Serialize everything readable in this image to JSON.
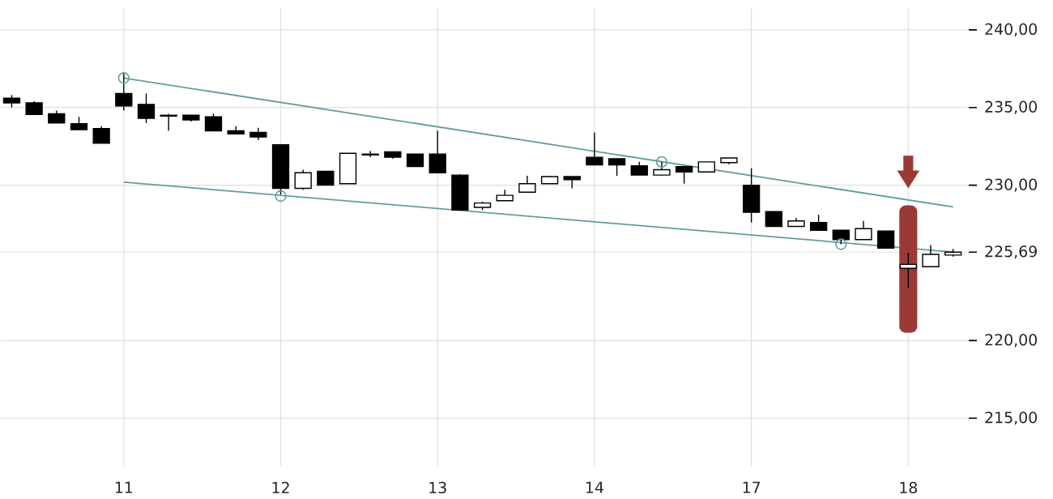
{
  "chart_data": {
    "type": "candlestick",
    "categories": [
      null,
      null,
      null,
      null,
      null,
      "11",
      null,
      null,
      null,
      null,
      null,
      null,
      "12",
      null,
      null,
      null,
      null,
      null,
      null,
      "13",
      null,
      null,
      null,
      null,
      null,
      null,
      "14",
      null,
      null,
      null,
      null,
      null,
      null,
      "17",
      null,
      null,
      null,
      null,
      null,
      null,
      "18",
      null,
      null
    ],
    "ohlc": [
      [
        235.6,
        235.8,
        235.0,
        235.3
      ],
      [
        235.3,
        235.4,
        234.55,
        234.55
      ],
      [
        234.6,
        234.8,
        234.0,
        234.0
      ],
      [
        233.96,
        234.4,
        233.57,
        233.57
      ],
      [
        233.65,
        233.8,
        232.7,
        232.7
      ],
      [
        235.9,
        237.2,
        234.8,
        235.1
      ],
      [
        235.2,
        235.9,
        234.0,
        234.3
      ],
      [
        234.5,
        234.6,
        233.5,
        234.45
      ],
      [
        234.5,
        234.5,
        234.1,
        234.2
      ],
      [
        234.4,
        234.6,
        233.5,
        233.5
      ],
      [
        233.5,
        233.8,
        233.3,
        233.3
      ],
      [
        233.4,
        233.7,
        232.9,
        233.1
      ],
      [
        232.6,
        232.6,
        229.4,
        229.8
      ],
      [
        229.8,
        231.0,
        229.7,
        230.8
      ],
      [
        230.9,
        230.9,
        230.0,
        230.0
      ],
      [
        230.1,
        232.05,
        230.1,
        232.05
      ],
      [
        232.0,
        232.2,
        231.8,
        231.95
      ],
      [
        232.15,
        232.15,
        231.7,
        231.8
      ],
      [
        232.0,
        232.0,
        231.2,
        231.2
      ],
      [
        232.0,
        233.5,
        230.8,
        230.8
      ],
      [
        230.65,
        230.7,
        228.4,
        228.4
      ],
      [
        228.57,
        228.95,
        228.4,
        228.85
      ],
      [
        229.0,
        229.7,
        229.0,
        229.35
      ],
      [
        229.55,
        230.6,
        229.55,
        230.1
      ],
      [
        230.1,
        230.6,
        230.1,
        230.55
      ],
      [
        230.55,
        230.55,
        229.8,
        230.35
      ],
      [
        231.8,
        233.4,
        231.3,
        231.3
      ],
      [
        231.7,
        231.7,
        230.6,
        231.3
      ],
      [
        231.25,
        231.5,
        230.65,
        230.65
      ],
      [
        230.65,
        231.5,
        230.65,
        231.0
      ],
      [
        231.2,
        231.2,
        230.1,
        230.85
      ],
      [
        230.85,
        231.5,
        230.85,
        231.5
      ],
      [
        231.45,
        231.75,
        231.35,
        231.75
      ],
      [
        230.0,
        231.1,
        227.6,
        228.25
      ],
      [
        228.3,
        228.3,
        227.35,
        227.35
      ],
      [
        227.35,
        227.9,
        227.35,
        227.7
      ],
      [
        227.6,
        228.1,
        227.1,
        227.1
      ],
      [
        227.1,
        227.1,
        226.2,
        226.5
      ],
      [
        226.5,
        227.7,
        226.5,
        227.2
      ],
      [
        227.05,
        227.05,
        225.95,
        225.95
      ],
      [
        224.65,
        225.65,
        223.4,
        224.9
      ],
      [
        224.75,
        226.15,
        224.75,
        225.55
      ],
      [
        225.5,
        225.9,
        225.4,
        225.69
      ]
    ],
    "series": [
      {
        "type": "line",
        "color": "#5f9ea0",
        "values": [
          null,
          null,
          null,
          null,
          null,
          236.9,
          null,
          null,
          null,
          null,
          null,
          null,
          null,
          null,
          null,
          null,
          null,
          null,
          null,
          null,
          null,
          null,
          null,
          null,
          null,
          null,
          null,
          null,
          null,
          null,
          null,
          null,
          null,
          null,
          null,
          null,
          null,
          null,
          null,
          null,
          null,
          null,
          228.6
        ]
      },
      {
        "type": "line",
        "color": "#5f9ea0",
        "values": [
          null,
          null,
          null,
          null,
          null,
          230.2,
          null,
          null,
          null,
          null,
          null,
          null,
          null,
          null,
          null,
          null,
          null,
          null,
          null,
          null,
          null,
          null,
          null,
          null,
          null,
          null,
          null,
          null,
          null,
          null,
          null,
          null,
          null,
          null,
          null,
          null,
          null,
          null,
          null,
          null,
          null,
          null,
          225.7
        ]
      },
      {
        "type": "scatter",
        "marker": "circle",
        "color": "#5f9ea0",
        "values": [
          null,
          null,
          null,
          null,
          null,
          236.9,
          null,
          null,
          null,
          null,
          null,
          null,
          229.3,
          null,
          null,
          null,
          null,
          null,
          null,
          null,
          null,
          null,
          null,
          null,
          null,
          null,
          null,
          null,
          null,
          231.5,
          null,
          null,
          null,
          null,
          null,
          null,
          null,
          226.2,
          null,
          null,
          null,
          null,
          null
        ]
      }
    ],
    "ylim": [
      211.9,
      241.4
    ],
    "yticks": [
      {
        "value": 215,
        "label": "215,00"
      },
      {
        "value": 220,
        "label": "220,00"
      },
      {
        "value": 225.69,
        "label": "225,69"
      },
      {
        "value": 230,
        "label": "230,00"
      },
      {
        "value": 235,
        "label": "235,00"
      },
      {
        "value": 240,
        "label": "240,00"
      }
    ],
    "grid": true
  }
}
